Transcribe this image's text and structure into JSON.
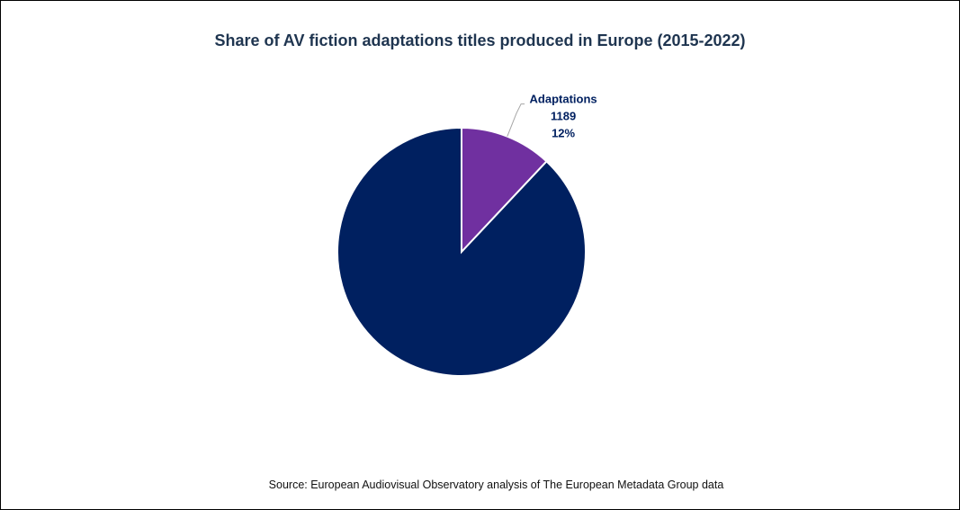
{
  "chart_data": {
    "type": "pie",
    "title": "Share of AV fiction adaptations titles produced in Europe (2015-2022)",
    "slices": [
      {
        "label": "Adaptations",
        "value": 1189,
        "percent_label": "12%",
        "share": 0.12,
        "color": "#7030a0",
        "show_label": true
      },
      {
        "label": "",
        "value": null,
        "percent_label": "",
        "share": 0.88,
        "color": "#002060",
        "show_label": false
      }
    ],
    "start_angle_deg": 0,
    "direction": "clockwise",
    "label_color": "#002060",
    "leader_line_color": "#a6a6a6"
  },
  "source": "Source: European Audiovisual Observatory analysis of The European Metadata Group data"
}
